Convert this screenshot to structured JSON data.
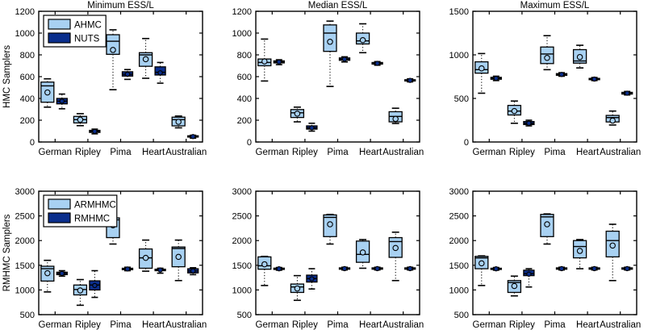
{
  "figure": {
    "background": "#ffffff",
    "rows": 2,
    "cols": 3,
    "row_ylabels": [
      "HMC Samplers",
      "RMHMC Samplers"
    ],
    "col_titles": [
      "Minimum ESS/L",
      "Median ESS/L",
      "Maximum ESS/L"
    ]
  },
  "colors": {
    "series_light": "#a8d1f2",
    "series_dark": "#0a2e8c",
    "axis": "#000000",
    "plot_bg": "#ffffff"
  },
  "box_format": [
    "whisker_low",
    "q1",
    "median",
    "q3",
    "whisker_high",
    "mean"
  ],
  "chart_data": [
    {
      "type": "boxplot",
      "row": 0,
      "col": 0,
      "title": "Minimum ESS/L",
      "ylabel": "HMC Samplers",
      "ylim": [
        0,
        1200
      ],
      "yticks": [
        0,
        200,
        400,
        600,
        800,
        1000,
        1200
      ],
      "legend": true,
      "legend_position": "upper-left",
      "grid": false,
      "categories": [
        "German",
        "Ripley",
        "Pima",
        "Heart",
        "Australian"
      ],
      "series": [
        {
          "name": "AHMC",
          "color": "#a8d1f2",
          "boxes": [
            [
              320,
              365,
              515,
              550,
              580,
              455
            ],
            [
              150,
              175,
              205,
              235,
              260,
              205
            ],
            [
              480,
              805,
              925,
              985,
              1030,
              845
            ],
            [
              585,
              695,
              800,
              820,
              950,
              760
            ],
            [
              130,
              148,
              205,
              228,
              238,
              185
            ]
          ]
        },
        {
          "name": "NUTS",
          "color": "#0a2e8c",
          "boxes": [
            [
              305,
              350,
              375,
              400,
              440,
              375
            ],
            [
              75,
              88,
              97,
              107,
              118,
              97
            ],
            [
              575,
              605,
              622,
              645,
              665,
              622
            ],
            [
              540,
              615,
              640,
              690,
              730,
              635
            ],
            [
              35,
              45,
              50,
              57,
              62,
              50
            ]
          ]
        }
      ]
    },
    {
      "type": "boxplot",
      "row": 0,
      "col": 1,
      "title": "Median ESS/L",
      "ylabel": null,
      "ylim": [
        0,
        1200
      ],
      "yticks": [
        0,
        200,
        400,
        600,
        800,
        1000,
        1200
      ],
      "legend": false,
      "grid": false,
      "categories": [
        "German",
        "Ripley",
        "Pima",
        "Heart",
        "Australian"
      ],
      "series": [
        {
          "name": "AHMC",
          "color": "#a8d1f2",
          "boxes": [
            [
              560,
              700,
              730,
              762,
              945,
              740
            ],
            [
              185,
              225,
              268,
              298,
              320,
              260
            ],
            [
              510,
              832,
              1000,
              1075,
              1110,
              920
            ],
            [
              820,
              900,
              928,
              1000,
              1085,
              935
            ],
            [
              170,
              185,
              235,
              278,
              310,
              212
            ]
          ]
        },
        {
          "name": "NUTS",
          "color": "#0a2e8c",
          "boxes": [
            [
              710,
              726,
              735,
              745,
              755,
              735
            ],
            [
              100,
              118,
              130,
              148,
              172,
              130
            ],
            [
              735,
              750,
              760,
              772,
              782,
              760
            ],
            [
              705,
              715,
              722,
              730,
              738,
              722
            ],
            [
              552,
              560,
              566,
              572,
              580,
              566
            ]
          ]
        }
      ]
    },
    {
      "type": "boxplot",
      "row": 0,
      "col": 2,
      "title": "Maximum ESS/L",
      "ylabel": null,
      "ylim": [
        0,
        1500
      ],
      "yticks": [
        0,
        500,
        1000,
        1500
      ],
      "legend": false,
      "grid": false,
      "categories": [
        "German",
        "Ripley",
        "Pima",
        "Heart",
        "Australian"
      ],
      "series": [
        {
          "name": "AHMC",
          "color": "#a8d1f2",
          "boxes": [
            [
              560,
              790,
              830,
              920,
              1015,
              845
            ],
            [
              215,
              310,
              355,
              420,
              470,
              355
            ],
            [
              830,
              900,
              1010,
              1090,
              1220,
              965
            ],
            [
              850,
              905,
              930,
              1060,
              1110,
              975
            ],
            [
              195,
              230,
              280,
              305,
              355,
              245
            ]
          ]
        },
        {
          "name": "NUTS",
          "color": "#0a2e8c",
          "boxes": [
            [
              705,
              720,
              730,
              742,
              755,
              730
            ],
            [
              185,
              200,
              215,
              235,
              250,
              215
            ],
            [
              755,
              765,
              775,
              785,
              795,
              775
            ],
            [
              705,
              715,
              722,
              730,
              740,
              722
            ],
            [
              540,
              550,
              560,
              570,
              580,
              560
            ]
          ]
        }
      ]
    },
    {
      "type": "boxplot",
      "row": 1,
      "col": 0,
      "title": null,
      "ylabel": "RMHMC Samplers",
      "ylim": [
        500,
        3000
      ],
      "yticks": [
        500,
        1000,
        1500,
        2000,
        2500,
        3000
      ],
      "legend": true,
      "legend_position": "upper-left",
      "grid": false,
      "categories": [
        "German",
        "Ripley",
        "Pima",
        "Heart",
        "Australian"
      ],
      "series": [
        {
          "name": "ARMHMC",
          "color": "#a8d1f2",
          "boxes": [
            [
              960,
              1180,
              1430,
              1480,
              1600,
              1340
            ],
            [
              690,
              900,
              1010,
              1100,
              1210,
              990
            ],
            [
              1930,
              2060,
              2420,
              2460,
              2540,
              2310
            ],
            [
              1380,
              1440,
              1650,
              1830,
              2010,
              1650
            ],
            [
              1190,
              1470,
              1840,
              1870,
              2010,
              1670
            ]
          ]
        },
        {
          "name": "RMHMC",
          "color": "#0a2e8c",
          "boxes": [
            [
              1280,
              1310,
              1335,
              1360,
              1390,
              1335
            ],
            [
              850,
              1000,
              1100,
              1185,
              1390,
              1090
            ],
            [
              1390,
              1410,
              1425,
              1440,
              1460,
              1425
            ],
            [
              1340,
              1390,
              1405,
              1420,
              1440,
              1405
            ],
            [
              1310,
              1345,
              1385,
              1430,
              1450,
              1385
            ]
          ]
        }
      ]
    },
    {
      "type": "boxplot",
      "row": 1,
      "col": 1,
      "title": null,
      "ylabel": null,
      "ylim": [
        500,
        3000
      ],
      "yticks": [
        500,
        1000,
        1500,
        2000,
        2500,
        3000
      ],
      "legend": false,
      "grid": false,
      "categories": [
        "German",
        "Ripley",
        "Pima",
        "Heart",
        "Australian"
      ],
      "series": [
        {
          "name": "ARMHMC",
          "color": "#a8d1f2",
          "boxes": [
            [
              1090,
              1420,
              1490,
              1670,
              1680,
              1520
            ],
            [
              790,
              950,
              1060,
              1120,
              1290,
              1030
            ],
            [
              1930,
              2080,
              2470,
              2520,
              2530,
              2330
            ],
            [
              1440,
              1560,
              1720,
              1990,
              2020,
              1760
            ],
            [
              1190,
              1660,
              1980,
              2060,
              2170,
              1850
            ]
          ]
        },
        {
          "name": "RMHMC",
          "color": "#0a2e8c",
          "boxes": [
            [
              1400,
              1415,
              1428,
              1442,
              1455,
              1428
            ],
            [
              1020,
              1160,
              1230,
              1300,
              1430,
              1225
            ],
            [
              1405,
              1420,
              1432,
              1448,
              1460,
              1432
            ],
            [
              1405,
              1420,
              1432,
              1448,
              1460,
              1432
            ],
            [
              1405,
              1420,
              1432,
              1448,
              1460,
              1432
            ]
          ]
        }
      ]
    },
    {
      "type": "boxplot",
      "row": 1,
      "col": 2,
      "title": null,
      "ylabel": null,
      "ylim": [
        500,
        3000
      ],
      "yticks": [
        500,
        1000,
        1500,
        2000,
        2500,
        3000
      ],
      "legend": false,
      "grid": false,
      "categories": [
        "German",
        "Ripley",
        "Pima",
        "Heart",
        "Australian"
      ],
      "series": [
        {
          "name": "ARMHMC",
          "color": "#a8d1f2",
          "boxes": [
            [
              1090,
              1430,
              1650,
              1680,
              1690,
              1540
            ],
            [
              880,
              950,
              1150,
              1190,
              1280,
              1080
            ],
            [
              1930,
              2080,
              2480,
              2530,
              2540,
              2330
            ],
            [
              1430,
              1650,
              1880,
              2000,
              2020,
              1790
            ],
            [
              1190,
              1670,
              2000,
              2190,
              2330,
              1900
            ]
          ]
        },
        {
          "name": "RMHMC",
          "color": "#0a2e8c",
          "boxes": [
            [
              1400,
              1415,
              1428,
              1440,
              1455,
              1428
            ],
            [
              1060,
              1290,
              1330,
              1400,
              1430,
              1320
            ],
            [
              1405,
              1420,
              1432,
              1448,
              1460,
              1432
            ],
            [
              1405,
              1420,
              1432,
              1448,
              1460,
              1432
            ],
            [
              1405,
              1420,
              1432,
              1448,
              1460,
              1432
            ]
          ]
        }
      ]
    }
  ]
}
